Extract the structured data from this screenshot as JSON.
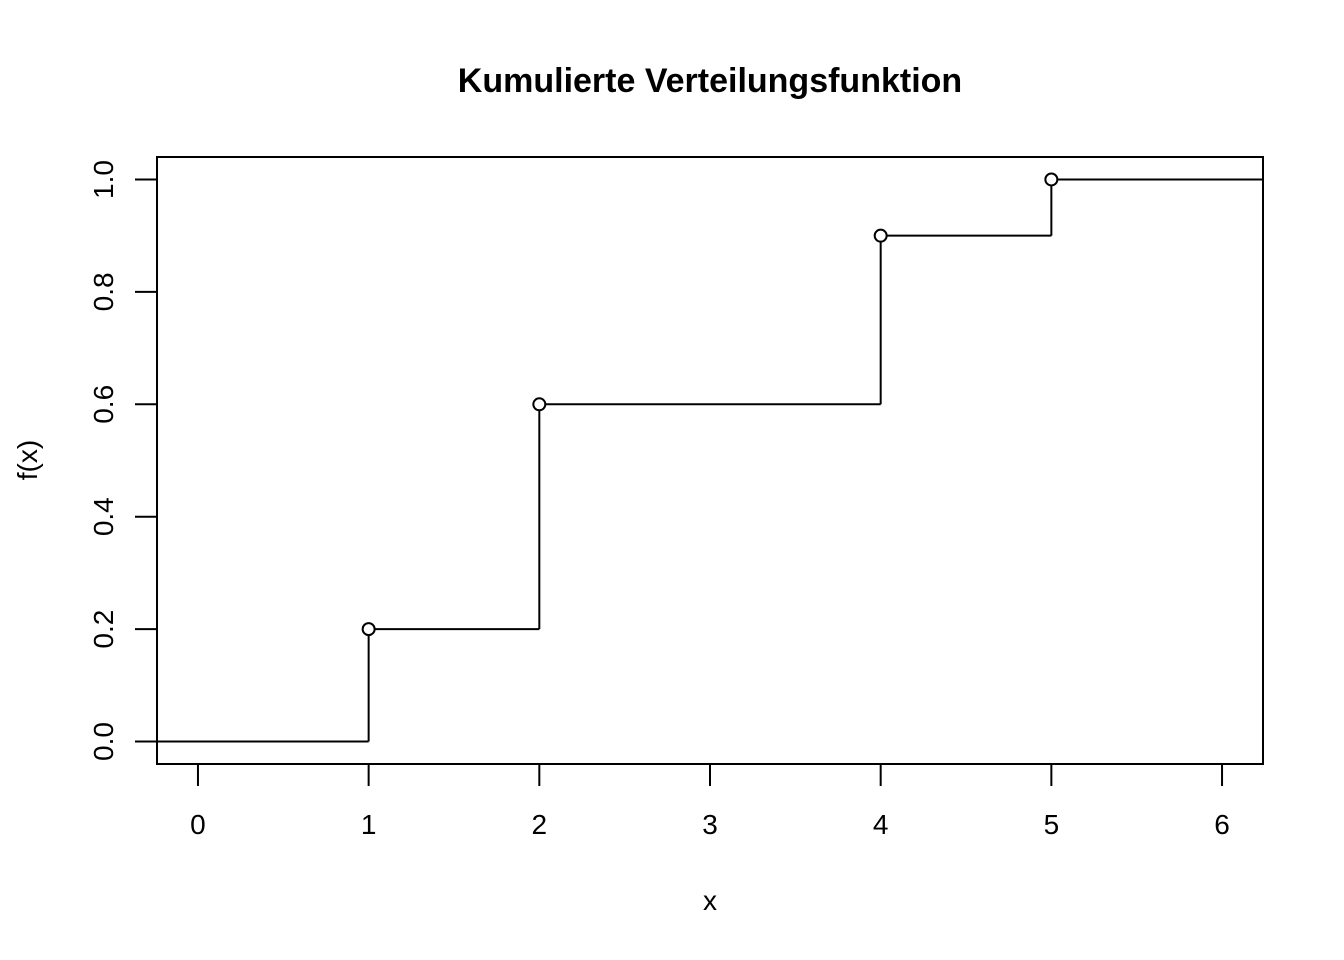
{
  "chart_data": {
    "type": "line",
    "subtype": "step-ecdf",
    "title": "Kumulierte Verteilungsfunktion",
    "xlabel": "x",
    "ylabel": "f(x)",
    "x_ticks": [
      "0",
      "1",
      "2",
      "3",
      "4",
      "5",
      "6"
    ],
    "y_ticks": [
      "0.0",
      "0.2",
      "0.4",
      "0.6",
      "0.8",
      "1.0"
    ],
    "xlim": [
      -0.24,
      6.24
    ],
    "ylim": [
      -0.04,
      1.04
    ],
    "x_tick_values": [
      0,
      1,
      2,
      3,
      4,
      5,
      6
    ],
    "y_tick_values": [
      0,
      0.2,
      0.4,
      0.6,
      0.8,
      1.0
    ],
    "steps": [
      {
        "x": 1,
        "y": 0.2
      },
      {
        "x": 2,
        "y": 0.6
      },
      {
        "x": 4,
        "y": 0.9
      },
      {
        "x": 5,
        "y": 1.0
      }
    ],
    "baseline_y": 0.0,
    "line_color": "#000000",
    "point_style": "open-circle"
  }
}
